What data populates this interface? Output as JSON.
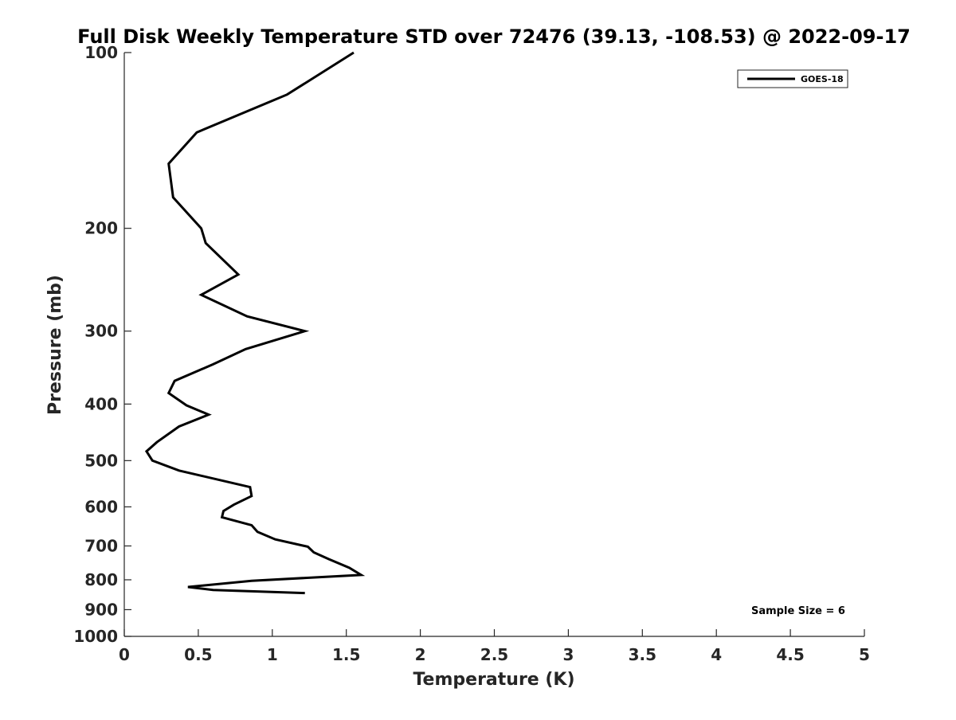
{
  "chart_data": {
    "type": "line",
    "title": "Full Disk Weekly Temperature STD over 72476 (39.13, -108.53) @ 2022-09-17",
    "xlabel": "Temperature (K)",
    "ylabel": "Pressure (mb)",
    "xlim": [
      0,
      5
    ],
    "ylim": [
      100,
      1000
    ],
    "y_scale": "log",
    "y_reversed": true,
    "grid": false,
    "x_ticks": [
      0,
      0.5,
      1,
      1.5,
      2,
      2.5,
      3,
      3.5,
      4,
      4.5,
      5
    ],
    "x_tick_labels": [
      "0",
      "0.5",
      "1",
      "1.5",
      "2",
      "2.5",
      "3",
      "3.5",
      "4",
      "4.5",
      "5"
    ],
    "y_ticks": [
      100,
      200,
      300,
      400,
      500,
      600,
      700,
      800,
      900,
      1000
    ],
    "y_tick_labels": [
      "100",
      "200",
      "300",
      "400",
      "500",
      "600",
      "700",
      "800",
      "900",
      "1000"
    ],
    "legend_position": "top-right",
    "series": [
      {
        "name": "GOES-18",
        "color": "#000000",
        "x": [
          1.55,
          1.1,
          0.49,
          0.3,
          0.33,
          0.52,
          0.55,
          0.77,
          0.52,
          0.83,
          1.22,
          0.82,
          0.6,
          0.34,
          0.3,
          0.42,
          0.57,
          0.37,
          0.22,
          0.15,
          0.19,
          0.37,
          0.85,
          0.86,
          0.74,
          0.67,
          0.66,
          0.86,
          0.9,
          1.02,
          1.24,
          1.28,
          1.38,
          1.52,
          1.6,
          0.86,
          0.43,
          0.6,
          1.22
        ],
        "y": [
          100,
          118,
          137,
          155,
          177,
          200,
          212,
          240,
          260,
          283,
          300,
          322,
          342,
          365,
          383,
          402,
          417,
          437,
          465,
          482,
          500,
          520,
          555,
          575,
          595,
          610,
          625,
          645,
          662,
          682,
          702,
          718,
          737,
          763,
          785,
          803,
          823,
          833,
          843
        ]
      }
    ],
    "annotations": [
      "Sample Size = 6"
    ]
  }
}
